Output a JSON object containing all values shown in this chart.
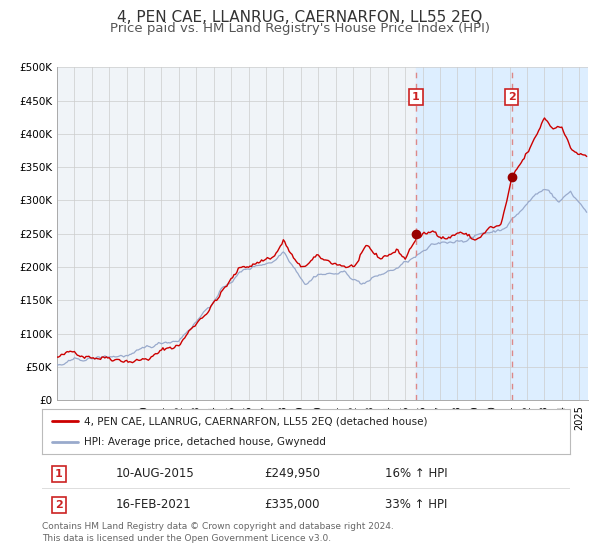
{
  "title": "4, PEN CAE, LLANRUG, CAERNARFON, LL55 2EQ",
  "subtitle": "Price paid vs. HM Land Registry's House Price Index (HPI)",
  "ylim": [
    0,
    500000
  ],
  "yticks": [
    0,
    50000,
    100000,
    150000,
    200000,
    250000,
    300000,
    350000,
    400000,
    450000,
    500000
  ],
  "ytick_labels": [
    "£0",
    "£50K",
    "£100K",
    "£150K",
    "£200K",
    "£250K",
    "£300K",
    "£350K",
    "£400K",
    "£450K",
    "£500K"
  ],
  "xlim_start": 1995.0,
  "xlim_end": 2025.5,
  "marker1_x": 2015.62,
  "marker1_y": 249950,
  "marker2_x": 2021.12,
  "marker2_y": 335000,
  "vline1_x": 2015.62,
  "vline2_x": 2021.12,
  "shade_x_start": 2015.62,
  "shade_x_end": 2025.5,
  "red_line_color": "#cc0000",
  "blue_line_color": "#99aacc",
  "marker_color": "#990000",
  "vline_color": "#dd8888",
  "shade_color": "#ddeeff",
  "plot_bg_color": "#f0f4f8",
  "grid_color": "#cccccc",
  "legend_label_red": "4, PEN CAE, LLANRUG, CAERNARFON, LL55 2EQ (detached house)",
  "legend_label_blue": "HPI: Average price, detached house, Gwynedd",
  "table_row1": [
    "1",
    "10-AUG-2015",
    "£249,950",
    "16% ↑ HPI"
  ],
  "table_row2": [
    "2",
    "16-FEB-2021",
    "£335,000",
    "33% ↑ HPI"
  ],
  "footer": "Contains HM Land Registry data © Crown copyright and database right 2024.\nThis data is licensed under the Open Government Licence v3.0.",
  "title_fontsize": 11,
  "subtitle_fontsize": 9.5,
  "annotation_box_color": "#cc2222"
}
